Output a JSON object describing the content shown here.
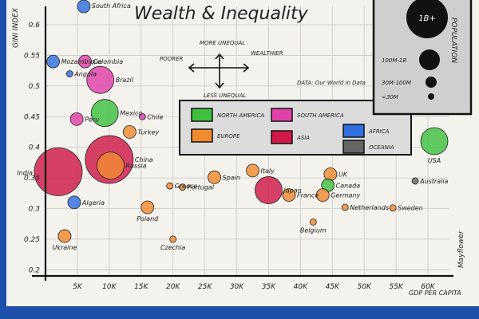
{
  "chart_data": {
    "type": "scatter",
    "title": "Wealth & Inequality",
    "ylabel": "GINI INDEX",
    "xlabel": "GDP PER CAPITA",
    "xlim": [
      0,
      62000
    ],
    "ylim": [
      0.19,
      0.63
    ],
    "x_ticks": [
      {
        "v": 5000,
        "label": "5K"
      },
      {
        "v": 10000,
        "label": "10K"
      },
      {
        "v": 15000,
        "label": "15K"
      },
      {
        "v": 20000,
        "label": "20K"
      },
      {
        "v": 25000,
        "label": "25K"
      },
      {
        "v": 30000,
        "label": "30K"
      },
      {
        "v": 35000,
        "label": "35K"
      },
      {
        "v": 40000,
        "label": "40K"
      },
      {
        "v": 45000,
        "label": "45K"
      },
      {
        "v": 50000,
        "label": "50K"
      },
      {
        "v": 55000,
        "label": "55K"
      },
      {
        "v": 60000,
        "label": "60K"
      }
    ],
    "y_ticks": [
      {
        "v": 0.2,
        "label": "0.2"
      },
      {
        "v": 0.25,
        "label": "0.25"
      },
      {
        "v": 0.3,
        "label": "0.3"
      },
      {
        "v": 0.35,
        "label": "0.35"
      },
      {
        "v": 0.4,
        "label": "0.4"
      },
      {
        "v": 0.45,
        "label": "0.45"
      },
      {
        "v": 0.5,
        "label": "0.5"
      },
      {
        "v": 0.55,
        "label": "0.55"
      },
      {
        "v": 0.6,
        "label": "0.6"
      }
    ],
    "regions": [
      {
        "key": "NA",
        "name": "NORTH AMERICA",
        "color": "#3fbf3f"
      },
      {
        "key": "SA",
        "name": "SOUTH AMERICA",
        "color": "#e040a8"
      },
      {
        "key": "AF",
        "name": "AFRICA",
        "color": "#2f6fe0"
      },
      {
        "key": "EU",
        "name": "EUROPE",
        "color": "#f08a30"
      },
      {
        "key": "AS",
        "name": "ASIA",
        "color": "#d01848"
      },
      {
        "key": "OC",
        "name": "OCEANIA",
        "color": "#666666"
      }
    ],
    "points": [
      {
        "label": "South Africa",
        "x": 6000,
        "y": 0.63,
        "region": "AF",
        "pop": "30m-100m"
      },
      {
        "label": "Mozambique",
        "x": 1200,
        "y": 0.54,
        "region": "AF",
        "pop": "30m-100m"
      },
      {
        "label": "Colombia",
        "x": 6200,
        "y": 0.54,
        "region": "SA",
        "pop": "30m-100m"
      },
      {
        "label": "Angola",
        "x": 3800,
        "y": 0.52,
        "region": "AF",
        "pop": "<30m"
      },
      {
        "label": "Brazil",
        "x": 8600,
        "y": 0.51,
        "region": "SA",
        "pop": "100m-1B"
      },
      {
        "label": "Mexico",
        "x": 9300,
        "y": 0.456,
        "region": "NA",
        "pop": "100m-1B"
      },
      {
        "label": "Peru",
        "x": 4900,
        "y": 0.446,
        "region": "SA",
        "pop": "30m-100m"
      },
      {
        "label": "Chile",
        "x": 15200,
        "y": 0.45,
        "region": "SA",
        "pop": "<30m"
      },
      {
        "label": "Turkey",
        "x": 13200,
        "y": 0.425,
        "region": "EU",
        "pop": "30m-100m"
      },
      {
        "label": "China",
        "x": 10000,
        "y": 0.38,
        "region": "AS",
        "pop": "1B+"
      },
      {
        "label": "Russia",
        "x": 10200,
        "y": 0.37,
        "region": "EU",
        "pop": "100m-1B"
      },
      {
        "label": "India",
        "x": 2000,
        "y": 0.36,
        "region": "AS",
        "pop": "1B+"
      },
      {
        "label": "Algeria",
        "x": 4500,
        "y": 0.31,
        "region": "AF",
        "pop": "30m-100m"
      },
      {
        "label": "Ukraine",
        "x": 3000,
        "y": 0.255,
        "region": "EU",
        "pop": "30m-100m"
      },
      {
        "label": "Greece",
        "x": 19500,
        "y": 0.337,
        "region": "EU",
        "pop": "<30m"
      },
      {
        "label": "Portugal",
        "x": 21500,
        "y": 0.335,
        "region": "EU",
        "pop": "<30m"
      },
      {
        "label": "Poland",
        "x": 16000,
        "y": 0.302,
        "region": "EU",
        "pop": "30m-100m"
      },
      {
        "label": "Czechia",
        "x": 20000,
        "y": 0.25,
        "region": "EU",
        "pop": "<30m"
      },
      {
        "label": "Spain",
        "x": 26500,
        "y": 0.351,
        "region": "EU",
        "pop": "30m-100m"
      },
      {
        "label": "Italy",
        "x": 32500,
        "y": 0.362,
        "region": "EU",
        "pop": "30m-100m"
      },
      {
        "label": "Japan",
        "x": 35000,
        "y": 0.33,
        "region": "AS",
        "pop": "100m-1B"
      },
      {
        "label": "France",
        "x": 38200,
        "y": 0.322,
        "region": "EU",
        "pop": "30m-100m"
      },
      {
        "label": "UK",
        "x": 44700,
        "y": 0.356,
        "region": "EU",
        "pop": "30m-100m"
      },
      {
        "label": "Canada",
        "x": 44300,
        "y": 0.338,
        "region": "NA",
        "pop": "30m-100m"
      },
      {
        "label": "Germany",
        "x": 43500,
        "y": 0.322,
        "region": "EU",
        "pop": "30m-100m"
      },
      {
        "label": "Netherlands",
        "x": 47000,
        "y": 0.302,
        "region": "EU",
        "pop": "<30m"
      },
      {
        "label": "Belgium",
        "x": 42000,
        "y": 0.278,
        "region": "EU",
        "pop": "<30m"
      },
      {
        "label": "Sweden",
        "x": 54500,
        "y": 0.301,
        "region": "EU",
        "pop": "<30m"
      },
      {
        "label": "Australia",
        "x": 58000,
        "y": 0.345,
        "region": "OC",
        "pop": "<30m"
      },
      {
        "label": "USA",
        "x": 61000,
        "y": 0.41,
        "region": "NA",
        "pop": "100m-1B"
      }
    ],
    "population_legend": {
      "title": "POPULATION",
      "sizes": [
        {
          "key": "1B+",
          "label": "1B+"
        },
        {
          "key": "100m-1B",
          "label": "100M-1B"
        },
        {
          "key": "30m-100m",
          "label": "30M-100M"
        },
        {
          "key": "<30m",
          "label": "<30M"
        }
      ]
    },
    "annotations": {
      "more_unequal": "MORE UNEQUAL",
      "less_unequal": "LESS UNEQUAL",
      "poorer": "POORER",
      "wealthier": "WEALTHIER",
      "source": "DATA: Our World in Data",
      "signature": "Mayflower"
    }
  }
}
